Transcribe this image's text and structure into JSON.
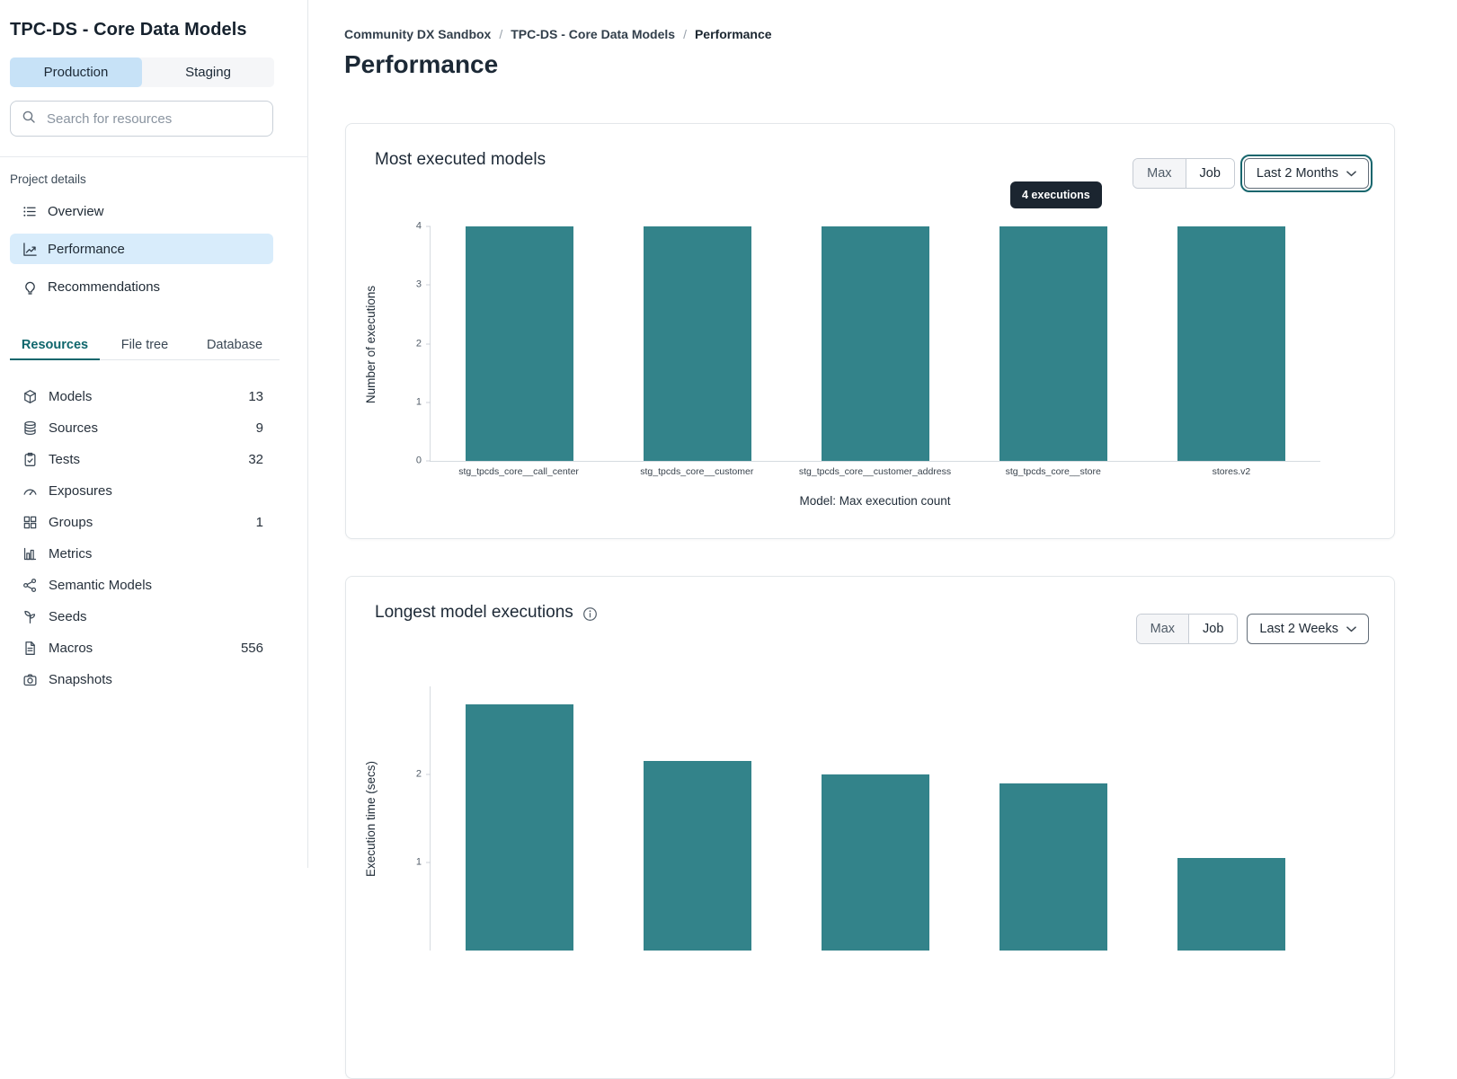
{
  "sidebar": {
    "project_title": "TPC-DS - Core Data Models",
    "environment_tabs": [
      {
        "label": "Production",
        "active": true
      },
      {
        "label": "Staging",
        "active": false
      }
    ],
    "search_placeholder": "Search for resources",
    "project_details_label": "Project details",
    "nav_items": [
      {
        "label": "Overview",
        "icon": "list-icon",
        "active": false
      },
      {
        "label": "Performance",
        "icon": "chart-line-icon",
        "active": true
      },
      {
        "label": "Recommendations",
        "icon": "lightbulb-icon",
        "active": false
      }
    ],
    "resource_tabs": [
      {
        "label": "Resources",
        "active": true
      },
      {
        "label": "File tree",
        "active": false
      },
      {
        "label": "Database",
        "active": false
      }
    ],
    "resources": [
      {
        "label": "Models",
        "count": "13",
        "icon": "cube-icon"
      },
      {
        "label": "Sources",
        "count": "9",
        "icon": "database-icon"
      },
      {
        "label": "Tests",
        "count": "32",
        "icon": "clipboard-icon"
      },
      {
        "label": "Exposures",
        "count": "",
        "icon": "gauge-icon"
      },
      {
        "label": "Groups",
        "count": "1",
        "icon": "grid-icon"
      },
      {
        "label": "Metrics",
        "count": "",
        "icon": "bar-chart-icon"
      },
      {
        "label": "Semantic Models",
        "count": "",
        "icon": "network-icon"
      },
      {
        "label": "Seeds",
        "count": "",
        "icon": "seedling-icon"
      },
      {
        "label": "Macros",
        "count": "556",
        "icon": "document-icon"
      },
      {
        "label": "Snapshots",
        "count": "",
        "icon": "camera-icon"
      }
    ]
  },
  "breadcrumb": {
    "separator": "/",
    "items": [
      {
        "label": "Community DX Sandbox",
        "current": false
      },
      {
        "label": "TPC-DS - Core Data Models",
        "current": false
      },
      {
        "label": "Performance",
        "current": true
      }
    ]
  },
  "page_title": "Performance",
  "cards": [
    {
      "title": "Most executed models",
      "toggle": [
        "Max",
        "Job"
      ],
      "dropdown_value": "Last 2 Months",
      "tooltip": "4 executions"
    },
    {
      "title": "Longest model executions",
      "toggle": [
        "Max",
        "Job"
      ],
      "dropdown_value": "Last 2 Weeks"
    }
  ],
  "chart_data": [
    {
      "type": "bar",
      "title": "Most executed models",
      "categories": [
        "stg_tpcds_core__call_center",
        "stg_tpcds_core__customer",
        "stg_tpcds_core__customer_address",
        "stg_tpcds_core__store",
        "stores.v2"
      ],
      "values": [
        4,
        4,
        4,
        4,
        4
      ],
      "xlabel": "Model: Max execution count",
      "ylabel": "Number of executions",
      "ylim": [
        0,
        4
      ],
      "yticks": [
        0,
        1,
        2,
        3,
        4
      ],
      "grid": false,
      "legend": false,
      "bar_color": "#33838A"
    },
    {
      "type": "bar",
      "title": "Longest model executions",
      "categories": [
        "",
        "",
        "",
        "",
        ""
      ],
      "values": [
        2.8,
        2.15,
        2.0,
        1.9,
        1.05
      ],
      "xlabel": "",
      "ylabel": "Execution time (secs)",
      "ylim": [
        0,
        3
      ],
      "yticks": [
        1,
        2
      ],
      "grid": false,
      "legend": false,
      "bar_color": "#33838A"
    }
  ],
  "colors": {
    "bar_teal": "#33838A",
    "active_nav_blue": "#D8ECFB",
    "production_tab_blue": "#C7E2F7",
    "active_tab_teal": "#0E666C",
    "tooltip_bg": "#1B2530",
    "focus_ring_teal": "#17666D"
  }
}
